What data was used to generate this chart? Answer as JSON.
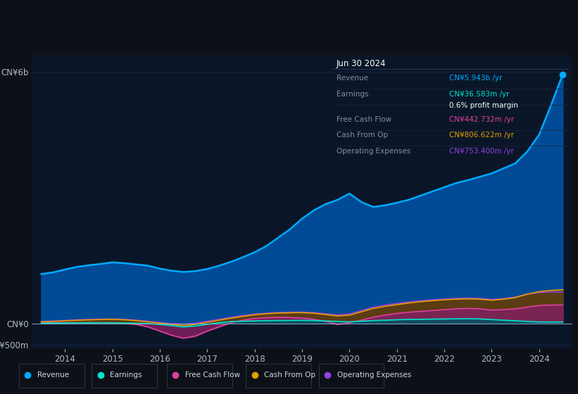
{
  "background_color": "#0d1117",
  "plot_bg_color": "#0a1628",
  "grid_color": "#1a2744",
  "line_colors": {
    "revenue": "#00aaff",
    "earnings": "#00e5cc",
    "free_cash_flow": "#e040a0",
    "cash_from_op": "#e0a000",
    "operating_expenses": "#9040e0"
  },
  "fill_colors": {
    "revenue": "#0055aa",
    "earnings": "#005566",
    "free_cash_flow": "#802060",
    "cash_from_op": "#604000",
    "operating_expenses": "#502080"
  },
  "title_box": {
    "date": "Jun 30 2024",
    "rows": [
      {
        "label": "Revenue",
        "value": "CN¥5.943b /yr",
        "value_color": "#00aaff"
      },
      {
        "label": "Earnings",
        "value": "CN¥36.583m /yr",
        "value_color": "#00e5cc"
      },
      {
        "label": "",
        "value": "0.6% profit margin",
        "value_color": "#ffffff"
      },
      {
        "label": "Free Cash Flow",
        "value": "CN¥442.732m /yr",
        "value_color": "#e040a0"
      },
      {
        "label": "Cash From Op",
        "value": "CN¥806.622m /yr",
        "value_color": "#e0a000"
      },
      {
        "label": "Operating Expenses",
        "value": "CN¥753.400m /yr",
        "value_color": "#9040e0"
      }
    ]
  },
  "legend": [
    {
      "label": "Revenue",
      "color": "#00aaff"
    },
    {
      "label": "Earnings",
      "color": "#00e5cc"
    },
    {
      "label": "Free Cash Flow",
      "color": "#e040a0"
    },
    {
      "label": "Cash From Op",
      "color": "#e0a000"
    },
    {
      "label": "Operating Expenses",
      "color": "#9040e0"
    }
  ],
  "x_years": [
    2013.5,
    2013.75,
    2014.0,
    2014.25,
    2014.5,
    2014.75,
    2015.0,
    2015.25,
    2015.5,
    2015.75,
    2016.0,
    2016.25,
    2016.5,
    2016.75,
    2017.0,
    2017.25,
    2017.5,
    2017.75,
    2018.0,
    2018.25,
    2018.5,
    2018.75,
    2019.0,
    2019.25,
    2019.5,
    2019.75,
    2020.0,
    2020.25,
    2020.5,
    2020.75,
    2021.0,
    2021.25,
    2021.5,
    2021.75,
    2022.0,
    2022.25,
    2022.5,
    2022.75,
    2023.0,
    2023.25,
    2023.5,
    2023.75,
    2024.0,
    2024.25,
    2024.5
  ],
  "revenue": [
    1180000000,
    1220000000,
    1290000000,
    1350000000,
    1390000000,
    1420000000,
    1460000000,
    1440000000,
    1410000000,
    1380000000,
    1310000000,
    1260000000,
    1230000000,
    1250000000,
    1300000000,
    1380000000,
    1470000000,
    1580000000,
    1700000000,
    1850000000,
    2050000000,
    2250000000,
    2500000000,
    2700000000,
    2850000000,
    2950000000,
    3100000000,
    2900000000,
    2780000000,
    2820000000,
    2880000000,
    2950000000,
    3050000000,
    3150000000,
    3250000000,
    3350000000,
    3420000000,
    3500000000,
    3580000000,
    3700000000,
    3820000000,
    4100000000,
    4500000000,
    5200000000,
    5943000000
  ],
  "earnings": [
    8000000,
    10000000,
    13000000,
    15000000,
    17000000,
    18000000,
    17000000,
    12000000,
    6000000,
    0,
    -20000000,
    -50000000,
    -80000000,
    -60000000,
    -20000000,
    20000000,
    45000000,
    55000000,
    62000000,
    68000000,
    70000000,
    72000000,
    75000000,
    70000000,
    62000000,
    50000000,
    40000000,
    55000000,
    70000000,
    80000000,
    90000000,
    98000000,
    100000000,
    105000000,
    108000000,
    112000000,
    115000000,
    110000000,
    95000000,
    80000000,
    65000000,
    50000000,
    36583000,
    36583000,
    36583000
  ],
  "free_cash_flow": [
    15000000,
    18000000,
    20000000,
    22000000,
    22000000,
    20000000,
    15000000,
    5000000,
    -20000000,
    -80000000,
    -180000000,
    -280000000,
    -350000000,
    -300000000,
    -180000000,
    -80000000,
    20000000,
    80000000,
    120000000,
    140000000,
    150000000,
    145000000,
    130000000,
    100000000,
    50000000,
    -20000000,
    20000000,
    80000000,
    150000000,
    200000000,
    240000000,
    270000000,
    290000000,
    310000000,
    330000000,
    350000000,
    360000000,
    350000000,
    320000000,
    330000000,
    350000000,
    390000000,
    430000000,
    440000000,
    442732000
  ],
  "cash_from_op": [
    40000000,
    50000000,
    65000000,
    78000000,
    88000000,
    95000000,
    100000000,
    90000000,
    70000000,
    40000000,
    10000000,
    -20000000,
    -50000000,
    -20000000,
    30000000,
    80000000,
    130000000,
    170000000,
    210000000,
    235000000,
    250000000,
    258000000,
    260000000,
    245000000,
    215000000,
    180000000,
    200000000,
    280000000,
    360000000,
    410000000,
    450000000,
    490000000,
    520000000,
    545000000,
    565000000,
    580000000,
    590000000,
    580000000,
    555000000,
    580000000,
    620000000,
    700000000,
    760000000,
    790000000,
    806622000
  ],
  "operating_expenses": [
    50000000,
    62000000,
    75000000,
    88000000,
    98000000,
    105000000,
    110000000,
    100000000,
    82000000,
    55000000,
    25000000,
    0,
    -15000000,
    10000000,
    55000000,
    100000000,
    150000000,
    190000000,
    225000000,
    248000000,
    262000000,
    270000000,
    272000000,
    260000000,
    235000000,
    205000000,
    230000000,
    310000000,
    390000000,
    440000000,
    480000000,
    515000000,
    545000000,
    568000000,
    585000000,
    600000000,
    610000000,
    600000000,
    575000000,
    595000000,
    630000000,
    700000000,
    740000000,
    750000000,
    753400000
  ],
  "ylim": [
    -600000000,
    6400000000
  ],
  "xlim": [
    2013.3,
    2024.7
  ]
}
